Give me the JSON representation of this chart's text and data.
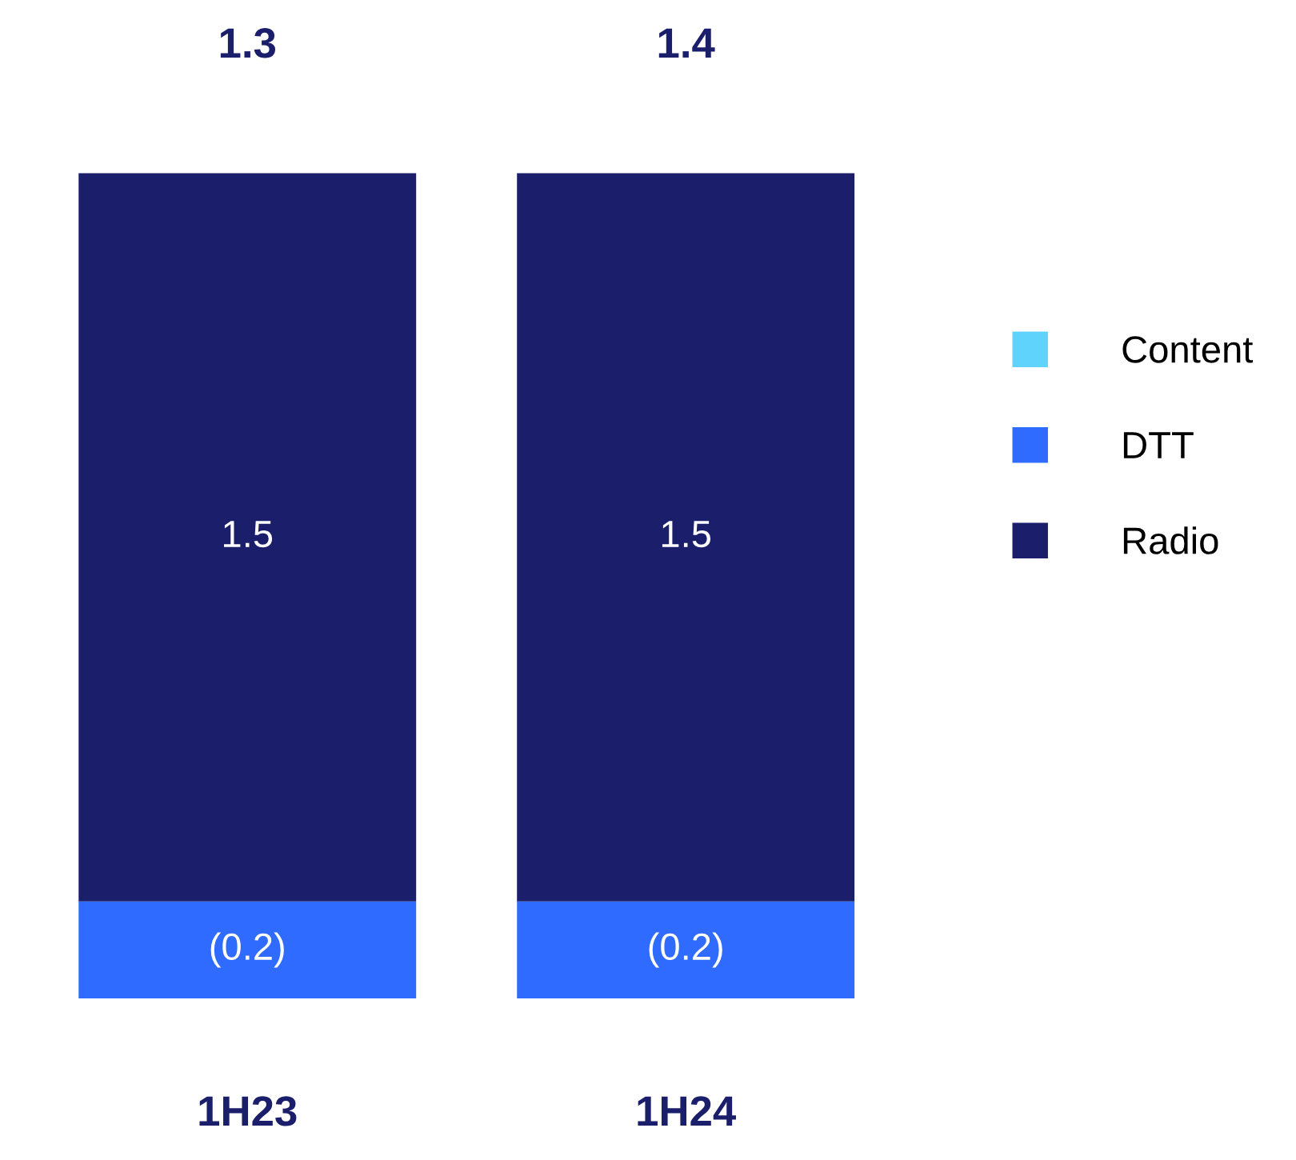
{
  "chart_data": {
    "type": "bar",
    "stacked": true,
    "categories": [
      "1H23",
      "1H24"
    ],
    "series": [
      {
        "name": "Content",
        "color": "#5fd3fb",
        "values": [
          null,
          null
        ]
      },
      {
        "name": "DTT",
        "color": "#2f6bff",
        "values": [
          -0.2,
          -0.2
        ],
        "value_labels": [
          "(0.2)",
          "(0.2)"
        ]
      },
      {
        "name": "Radio",
        "color": "#1b1f6b",
        "values": [
          1.5,
          1.5
        ],
        "value_labels": [
          "1.5",
          "1.5"
        ]
      }
    ],
    "totals": [
      "1.3",
      "1.4"
    ],
    "legend": "right",
    "grid": false
  }
}
